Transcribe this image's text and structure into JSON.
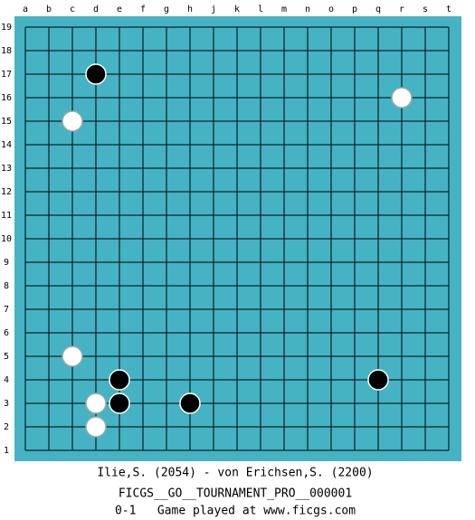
{
  "board": {
    "columns": [
      "a",
      "b",
      "c",
      "d",
      "e",
      "f",
      "g",
      "h",
      "j",
      "k",
      "l",
      "m",
      "n",
      "o",
      "p",
      "q",
      "r",
      "s",
      "t"
    ],
    "rows": [
      19,
      18,
      17,
      16,
      15,
      14,
      13,
      12,
      11,
      10,
      9,
      8,
      7,
      6,
      5,
      4,
      3,
      2,
      1
    ],
    "stones": [
      {
        "color": "black",
        "col": "d",
        "row": 17
      },
      {
        "color": "white",
        "col": "r",
        "row": 16
      },
      {
        "color": "white",
        "col": "c",
        "row": 15
      },
      {
        "color": "white",
        "col": "c",
        "row": 5
      },
      {
        "color": "black",
        "col": "e",
        "row": 4
      },
      {
        "color": "black",
        "col": "q",
        "row": 4
      },
      {
        "color": "white",
        "col": "d",
        "row": 3
      },
      {
        "color": "black",
        "col": "e",
        "row": 3
      },
      {
        "color": "black",
        "col": "h",
        "row": 3
      },
      {
        "color": "white",
        "col": "d",
        "row": 2
      }
    ]
  },
  "footer": {
    "players": "Ilie,S. (2054) - von Erichsen,S. (2200)",
    "event": "FICGS__GO__TOURNAMENT_PRO__000001",
    "result": "0-1   Game played at www.ficgs.com"
  }
}
